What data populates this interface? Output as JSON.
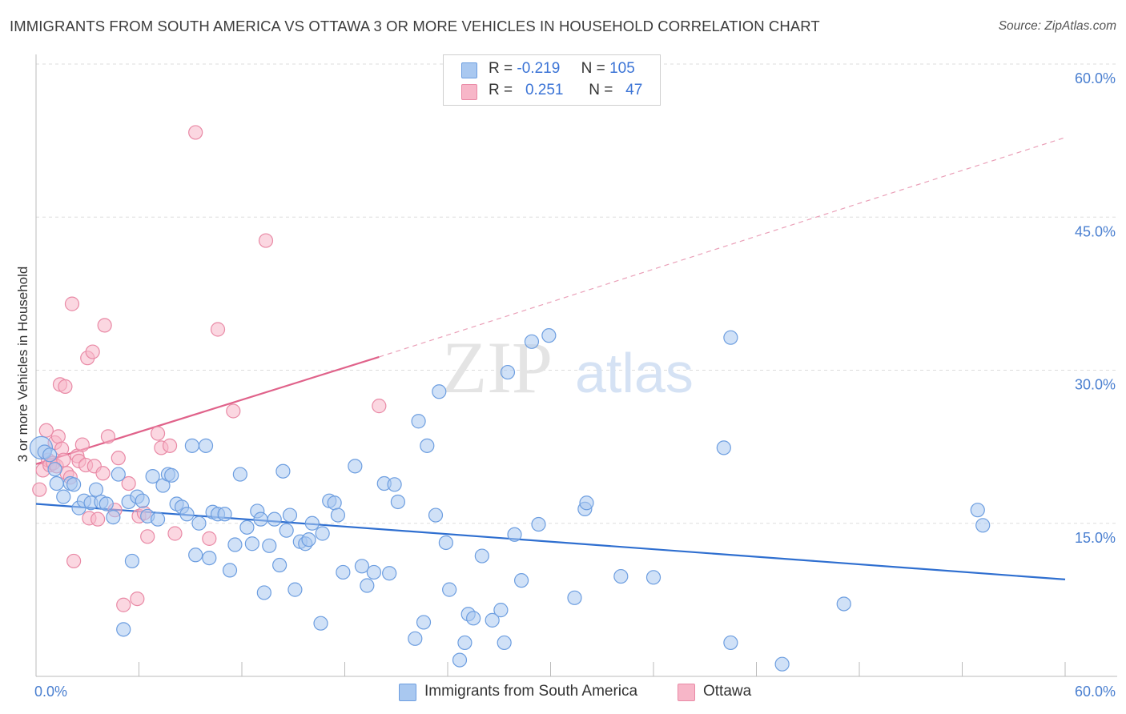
{
  "title": "IMMIGRANTS FROM SOUTH AMERICA VS OTTAWA 3 OR MORE VEHICLES IN HOUSEHOLD CORRELATION CHART",
  "source": "Source: ZipAtlas.com",
  "watermark": {
    "zip": "ZIP",
    "atlas": "atlas"
  },
  "legend": {
    "series1": {
      "r_label": "R =",
      "r_value": "-0.219",
      "n_label": "N =",
      "n_value": "105"
    },
    "series2": {
      "r_label": "R =",
      "r_value": "0.251",
      "n_label": "N =",
      "n_value": "47"
    }
  },
  "colors": {
    "blue_fill": "#a9c8f0",
    "blue_stroke": "#6d9ee0",
    "blue_line": "#2f6fd0",
    "pink_fill": "#f7b6c8",
    "pink_stroke": "#e98aa6",
    "pink_line": "#e0628a",
    "axis_text": "#4a7fd0",
    "grid": "#dddddd"
  },
  "chart_data": {
    "type": "scatter",
    "title": "IMMIGRANTS FROM SOUTH AMERICA VS OTTAWA 3 OR MORE VEHICLES IN HOUSEHOLD CORRELATION CHART",
    "xlabel": "",
    "ylabel": "3 or more Vehicles in Household",
    "xlim": [
      0,
      60
    ],
    "ylim": [
      0,
      60
    ],
    "x_tick_labels": [
      "0.0%",
      "60.0%"
    ],
    "y_ticks": [
      15,
      30,
      45,
      60
    ],
    "y_tick_labels": [
      "15.0%",
      "30.0%",
      "45.0%",
      "60.0%"
    ],
    "grid": "horizontal dashed",
    "legend_position": "top-center",
    "series": [
      {
        "name": "Immigrants from South America",
        "color": "#a9c8f0",
        "trend": {
          "x": [
            0,
            60
          ],
          "y": [
            16.9,
            9.5
          ],
          "style": "solid"
        },
        "points": [
          [
            0.3,
            22.4
          ],
          [
            0.5,
            22.0
          ],
          [
            0.8,
            21.7
          ],
          [
            1.1,
            20.3
          ],
          [
            1.2,
            18.9
          ],
          [
            1.6,
            17.6
          ],
          [
            2.0,
            18.9
          ],
          [
            2.2,
            18.8
          ],
          [
            2.5,
            16.5
          ],
          [
            2.8,
            17.2
          ],
          [
            3.2,
            17.0
          ],
          [
            3.5,
            18.3
          ],
          [
            3.8,
            17.1
          ],
          [
            4.1,
            16.9
          ],
          [
            4.5,
            15.6
          ],
          [
            4.8,
            19.8
          ],
          [
            5.1,
            4.6
          ],
          [
            5.4,
            17.1
          ],
          [
            5.6,
            11.3
          ],
          [
            5.9,
            17.6
          ],
          [
            6.2,
            17.2
          ],
          [
            6.5,
            15.7
          ],
          [
            6.8,
            19.6
          ],
          [
            7.1,
            15.4
          ],
          [
            7.4,
            18.7
          ],
          [
            7.7,
            19.8
          ],
          [
            7.9,
            19.7
          ],
          [
            8.2,
            16.9
          ],
          [
            8.5,
            16.6
          ],
          [
            8.8,
            15.9
          ],
          [
            9.1,
            22.6
          ],
          [
            9.3,
            11.9
          ],
          [
            9.5,
            15.0
          ],
          [
            9.9,
            22.6
          ],
          [
            10.1,
            11.6
          ],
          [
            10.3,
            16.1
          ],
          [
            10.6,
            15.9
          ],
          [
            11.0,
            15.9
          ],
          [
            11.3,
            10.4
          ],
          [
            11.6,
            12.9
          ],
          [
            11.9,
            19.8
          ],
          [
            12.3,
            14.6
          ],
          [
            12.6,
            13.0
          ],
          [
            12.9,
            16.2
          ],
          [
            13.1,
            15.4
          ],
          [
            13.3,
            8.2
          ],
          [
            13.6,
            12.8
          ],
          [
            13.9,
            15.4
          ],
          [
            14.2,
            10.9
          ],
          [
            14.4,
            20.1
          ],
          [
            14.6,
            14.3
          ],
          [
            14.8,
            15.8
          ],
          [
            15.1,
            8.5
          ],
          [
            15.4,
            13.2
          ],
          [
            15.7,
            13.0
          ],
          [
            15.9,
            13.4
          ],
          [
            16.1,
            15.0
          ],
          [
            16.6,
            5.2
          ],
          [
            16.7,
            14.0
          ],
          [
            17.1,
            17.2
          ],
          [
            17.4,
            17.0
          ],
          [
            17.6,
            15.8
          ],
          [
            17.9,
            10.2
          ],
          [
            18.6,
            20.6
          ],
          [
            19.0,
            10.8
          ],
          [
            19.3,
            8.9
          ],
          [
            19.7,
            10.2
          ],
          [
            20.3,
            18.9
          ],
          [
            20.6,
            10.1
          ],
          [
            20.9,
            18.8
          ],
          [
            21.1,
            17.1
          ],
          [
            22.1,
            3.7
          ],
          [
            22.3,
            25.0
          ],
          [
            22.6,
            5.3
          ],
          [
            22.8,
            22.6
          ],
          [
            23.3,
            15.8
          ],
          [
            23.5,
            27.9
          ],
          [
            23.9,
            13.1
          ],
          [
            24.1,
            8.5
          ],
          [
            24.7,
            1.6
          ],
          [
            25.0,
            3.3
          ],
          [
            25.2,
            6.1
          ],
          [
            25.5,
            5.7
          ],
          [
            26.0,
            11.8
          ],
          [
            26.6,
            5.5
          ],
          [
            27.1,
            6.5
          ],
          [
            27.3,
            3.3
          ],
          [
            27.5,
            29.8
          ],
          [
            27.9,
            13.9
          ],
          [
            28.3,
            9.4
          ],
          [
            28.9,
            32.8
          ],
          [
            29.3,
            14.9
          ],
          [
            29.9,
            33.4
          ],
          [
            31.4,
            7.7
          ],
          [
            32.0,
            16.4
          ],
          [
            32.1,
            17.0
          ],
          [
            34.1,
            9.8
          ],
          [
            36.0,
            9.7
          ],
          [
            40.1,
            22.4
          ],
          [
            40.5,
            3.3
          ],
          [
            40.5,
            33.2
          ],
          [
            43.5,
            1.2
          ],
          [
            47.1,
            7.1
          ],
          [
            54.9,
            16.3
          ],
          [
            55.2,
            14.8
          ]
        ]
      },
      {
        "name": "Ottawa",
        "color": "#f7b6c8",
        "trend": {
          "x": [
            0,
            20
          ],
          "y": [
            20.8,
            31.3
          ],
          "style": "solid",
          "extended": {
            "x": [
              20,
              60
            ],
            "y": [
              31.3,
              52.8
            ],
            "style": "dashed"
          }
        },
        "points": [
          [
            0.2,
            18.3
          ],
          [
            0.4,
            20.2
          ],
          [
            0.6,
            24.1
          ],
          [
            0.7,
            21.2
          ],
          [
            0.8,
            20.7
          ],
          [
            1.0,
            20.9
          ],
          [
            1.1,
            22.9
          ],
          [
            1.2,
            20.6
          ],
          [
            1.3,
            23.5
          ],
          [
            1.4,
            28.6
          ],
          [
            1.5,
            22.3
          ],
          [
            1.6,
            21.2
          ],
          [
            1.7,
            28.4
          ],
          [
            1.8,
            19.9
          ],
          [
            2.0,
            19.5
          ],
          [
            2.1,
            36.5
          ],
          [
            2.2,
            11.3
          ],
          [
            2.4,
            21.6
          ],
          [
            2.5,
            21.1
          ],
          [
            2.7,
            22.7
          ],
          [
            2.9,
            20.7
          ],
          [
            3.0,
            31.2
          ],
          [
            3.1,
            15.5
          ],
          [
            3.3,
            31.8
          ],
          [
            3.4,
            20.6
          ],
          [
            3.6,
            15.4
          ],
          [
            3.9,
            19.9
          ],
          [
            4.0,
            34.4
          ],
          [
            4.2,
            23.5
          ],
          [
            4.6,
            16.3
          ],
          [
            4.8,
            21.4
          ],
          [
            5.1,
            7.0
          ],
          [
            5.4,
            18.9
          ],
          [
            5.9,
            7.6
          ],
          [
            6.0,
            15.7
          ],
          [
            6.3,
            16.0
          ],
          [
            6.5,
            13.7
          ],
          [
            7.1,
            23.8
          ],
          [
            7.3,
            22.4
          ],
          [
            7.8,
            22.6
          ],
          [
            8.1,
            14.0
          ],
          [
            9.3,
            53.3
          ],
          [
            10.1,
            13.5
          ],
          [
            10.6,
            34.0
          ],
          [
            11.5,
            26.0
          ],
          [
            13.4,
            42.7
          ],
          [
            20.0,
            26.5
          ]
        ]
      }
    ]
  },
  "bottom_legend": {
    "item1": "Immigrants from South America",
    "item2": "Ottawa"
  }
}
